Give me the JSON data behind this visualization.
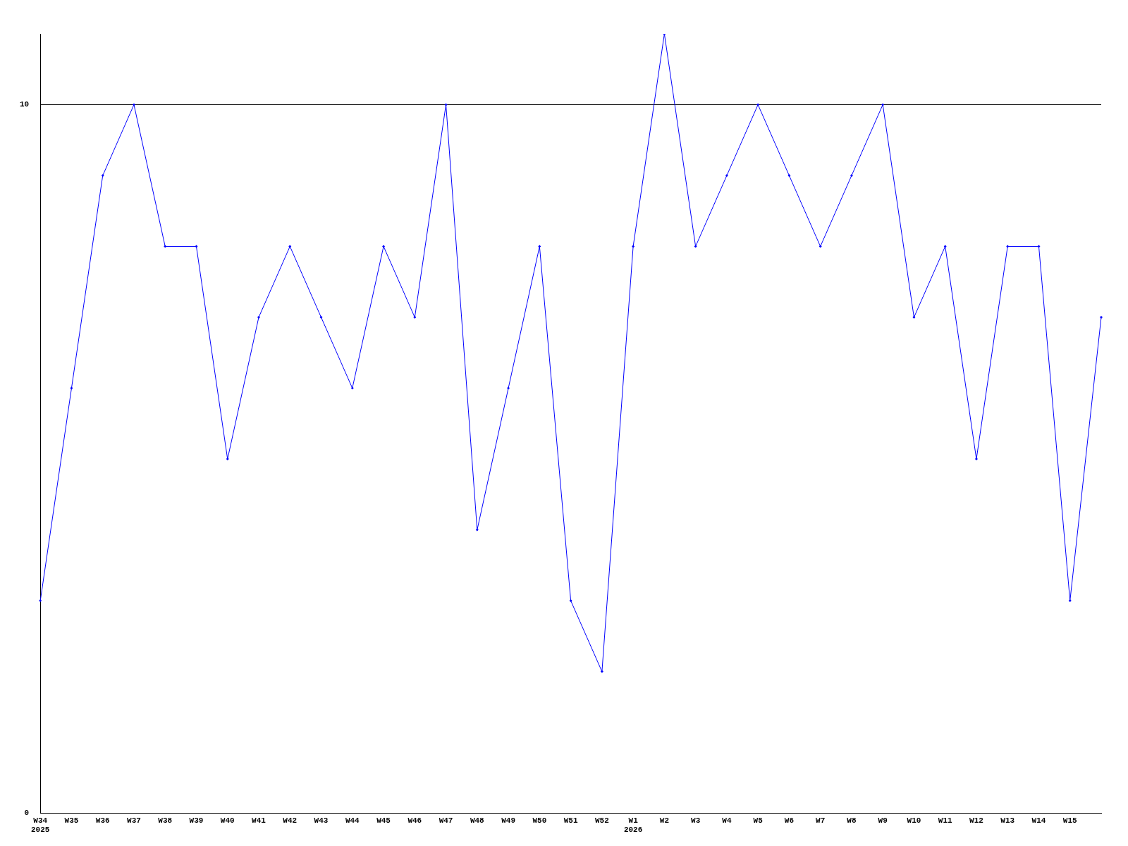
{
  "chart_data": {
    "type": "line",
    "categories": [
      "W34\n2025",
      "W35",
      "W36",
      "W37",
      "W38",
      "W39",
      "W40",
      "W41",
      "W42",
      "W43",
      "W44",
      "W45",
      "W46",
      "W47",
      "W48",
      "W49",
      "W50",
      "W51",
      "W52",
      "W1\n2026",
      "W2",
      "W3",
      "W4",
      "W5",
      "W6",
      "W7",
      "W8",
      "W9",
      "W10",
      "W11",
      "W12",
      "W13",
      "W14",
      "W15",
      null
    ],
    "series": [
      {
        "color": "#0000ff",
        "values": [
          3,
          6,
          9,
          10,
          8,
          8,
          5,
          7,
          8,
          7,
          6,
          8,
          7,
          10,
          4,
          6,
          8,
          3,
          2,
          8,
          11,
          8,
          9,
          10,
          9,
          8,
          9,
          10,
          7,
          8,
          5,
          8,
          8,
          3,
          7
        ]
      }
    ],
    "ylim": [
      0,
      11
    ],
    "yticks": [
      0,
      10
    ],
    "grid": "y",
    "marker": "diamond",
    "line_style": "solid",
    "legend": false
  }
}
